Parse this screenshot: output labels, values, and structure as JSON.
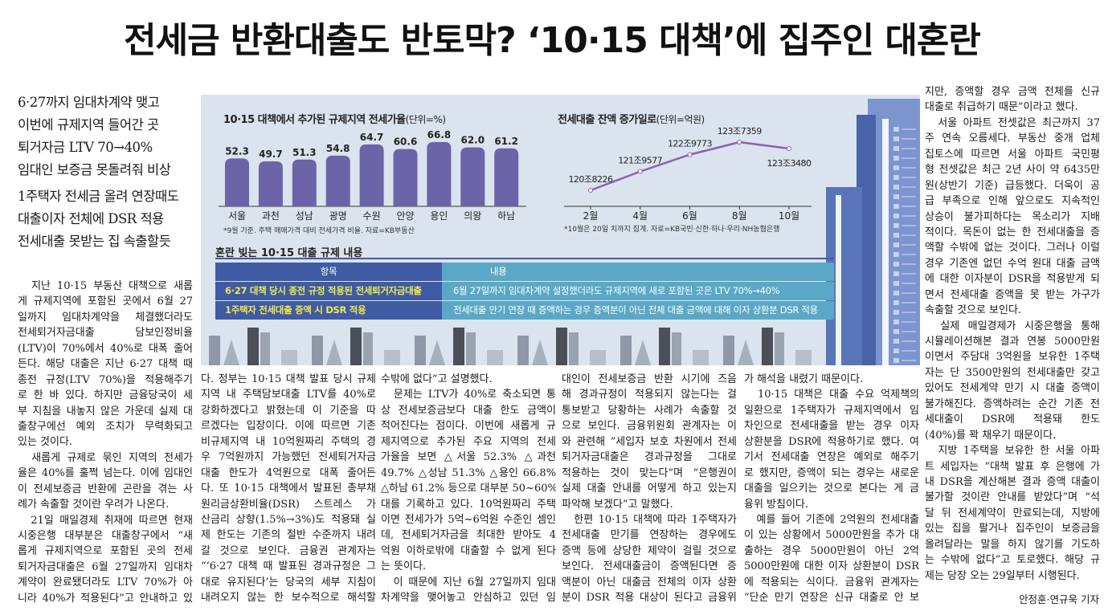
{
  "headline": "전세금 반환대출도 반토막? ‘10·15 대책’에 집주인 대혼란",
  "subheads": {
    "group1": [
      "6·27까지 임대차계약 맺고",
      "이번에 규제지역 들어간 곳",
      "퇴거자금 LTV 70→40%",
      "임대인 보증금 못돌려줘 비상"
    ],
    "group2": [
      "1주택자 전세금 올려 연장때도",
      "대출이자 전체에 DSR 적용",
      "전세대출 못받는 집 속출할듯"
    ]
  },
  "columns": [
    {
      "lines": [
        "　지난 10·15 부동산 대책으로 새롭",
        "게 규제지역에 포함된 곳에서 6월 27",
        "일까지 임대차계약을 체결했더라도",
        "전세퇴거자금대출 담보인정비율",
        "(LTV)이 70%에서 40%로 대폭 줄어",
        "든다. 해당 대출은 지난 6·27 대책 때",
        "종전 규정(LTV 70%)을 적용해주기",
        "로 한 바 있다. 하지만 금융당국이 세",
        "부 지침을 내놓지 않은 가운데 실제 대",
        "출창구에선 예외 조치가 무력화되고",
        "있는 것이다.",
        "　새롭게 규제로 묶인 지역의 전세가",
        "율은 40%를 훌쩍 넘는다. 이에 임대인",
        "이 전세보증금 반환에 곤란을 겪는 사",
        "례가 속출할 것이란 우려가 나온다.",
        "　21일 매일경제 취재에 따르면 현재",
        "시중은행 대부분은 대출창구에서 “새",
        "롭게 규제지역으로 포함된 곳의 전세",
        "퇴거자금대출은 6월 27일까지 임대차",
        "계약이 완료됐더라도 LTV 70%가 아",
        "니라 40%가 적용된다”고 안내하고 있"
      ],
      "ends": [
        10,
        14
      ]
    },
    {
      "lines": [
        "다. 정부는 10·15 대책 발표 당시 규제",
        "지역 내 주택담보대출 LTV를 40%로",
        "강화하겠다고 밝혔는데 이 기준을 따",
        "르겠다는 입장이다. 이에 따르면 기존",
        "비규제지역 내 10억원짜리 주택의 경",
        "우 7억원까지 가능했던 전세퇴거자금",
        "대출 한도가 4억원으로 대폭 줄어든",
        "다. 또 10·15 대책에서 발표된 총부채",
        "원리금상환비율(DSR) 스트레스 가",
        "산금리 상향(1.5%→3%)도 적용돼 실",
        "제 한도는 기존의 절반 수준까지 내려",
        "갈 것으로 보인다. 금융권 관계자는",
        "“‘6·27 대책 때 발표된 경과규정은 그",
        "대로 유지된다’는 당국의 세부 지침이",
        "내려오지 않는 한 보수적으로 해석할"
      ],
      "ends": []
    },
    {
      "lines": [
        "수밖에 없다”고 설명했다.",
        "　문제는 LTV가 40%로 축소되면 통",
        "상 전세보증금보다 대출 한도 금액이",
        "적어진다는 점이다. 이번에 새롭게 규",
        "제지역으로 추가된 주요 지역의 전세",
        "가율을 보면 △서울 52.3% △과천",
        "49.7% △성남 51.3% △용인 66.8%",
        "△하남 61.2% 등으로 대부분 50~60%",
        "대를 기록하고 있다. 10억원짜리 주택",
        "이면 전세가가 5억~6억원 수준인 셈인",
        "데, 전세퇴거자금을 최대한 받아도 4",
        "억원 이하로밖에 대출할 수 없게 된다",
        "는 뜻이다.",
        "　이 때문에 지난 6월 27일까지 임대",
        "차계약을 맺어놓고 안심하고 있던 임"
      ],
      "ends": [
        0,
        12
      ]
    },
    {
      "lines": [
        "대인이 전세보증금 반환 시기에 즈음",
        "해 경과규정이 적용되지 않는다는 걸",
        "통보받고 당황하는 사례가 속출할 것",
        "으로 보인다. 금융위원회 관계자는 이",
        "와 관련해 “세입자 보호 차원에서 전세",
        "퇴거자금대출은 경과규정을 그대로",
        "적용하는 것이 맞는다”며 “은행권이",
        "실제 대출 안내를 어떻게 하고 있는지",
        "파악해 보겠다”고 말했다.",
        "　한편 10·15 대책에 따라 1주택자가",
        "전세대출 만기를 연장하는 경우에도",
        "증액 등에 상당한 제약이 걸릴 것으로",
        "보인다. 전세대출금이 증액된다면 증",
        "액분이 아닌 대출금 전체의 이자 상환",
        "분이 DSR 적용 대상이 된다고 금융위"
      ],
      "ends": [
        8
      ]
    },
    {
      "lines": [
        "가 해석을 내렸기 때문이다.",
        "　10·15 대책은 대출 수요 억제책의",
        "일환으로 1주택자가 규제지역에서 임",
        "차인으로 전세대출을 받는 경우 이자",
        "상환분을 DSR에 적용하기로 했다. 여",
        "기서 전세대출 연장은 예외로 해주기",
        "로 했지만, 증액이 되는 경우는 새로운",
        "대출을 일으키는 것으로 본다는 게 금",
        "융위 방침이다.",
        "　예를 들어 기존에 2억원의 전세대출",
        "이 있는 상황에서 5000만원을 추가 대",
        "출하는 경우 5000만원이 아닌 2억",
        "5000만원에 대한 이자 상환분이 DSR",
        "에 적용되는 식이다. 금융위 관계자는",
        "“단순 만기 연장은 신규 대출로 안 보"
      ],
      "ends": [
        0,
        8
      ]
    },
    {
      "lines": [
        "지만, 증액할 경우 금액 전체를 신규",
        "대출로 취급하기 때문”이라고 했다.",
        "　서울 아파트 전셋값은 최근까지 37",
        "주 연속 오름세다. 부동산 중개 업체",
        "집토스에 따르면 서울 아파트 국민평",
        "형 전셋값은 최근 2년 사이 약 6435만",
        "원(상반기 기준) 급등했다. 더욱이 공",
        "급 부족으로 인해 앞으로도 지속적인",
        "상승이 불가피하다는 목소리가 지배",
        "적이다. 목돈이 없는 한 전세대출을 증",
        "액할 수밖에 없는 것이다. 그러나 이럴",
        "경우 기존엔 없던 수억 원대 대출 금액",
        "에 대한 이자분이 DSR을 적용받게 되",
        "면서 전세대출 증액을 못 받는 가구가",
        "속출할 것으로 보인다.",
        "　실제 매일경제가 시중은행을 통해",
        "시뮬레이션해본 결과 연봉 5000만원",
        "이면서 주담대 3억원을 보유한 1주택",
        "자는 단 3500만원의 전세대출만 갖고",
        "있어도 전세계약 만기 시 대출 증액이",
        "불가해진다. 증액하려는 순간 기존 전",
        "세대출이 DSR에 적용돼 한도",
        "(40%)를 꽉 채우기 때문이다.",
        "　지방 1주택을 보유한 한 서울 아파",
        "트 세입자는 “대책 발표 후 은행에 가",
        "내 DSR을 계산해본 결과 증액 대출이",
        "불가할 것이란 안내를 받았다”며 “석",
        "달 뒤 전세계약이 만료되는데, 지방에",
        "있는 집을 팔거나 집주인이 보증금을",
        "올려달라는 말을 하지 않기를 기도하",
        "는 수밖에 없다”고 토로했다. 해당 규",
        "제는 당장 오는 29일부터 시행된다."
      ],
      "ends": [
        1,
        14,
        22,
        31
      ]
    }
  ],
  "byline": "안정훈·연규욱 기자",
  "chart_data": [
    {
      "type": "bar",
      "title": "10·15 대책에서 추가된 규제지역 전세가율",
      "unit": "(단위=%)",
      "categories": [
        "서울",
        "과천",
        "성남",
        "광명",
        "수원",
        "안양",
        "용인",
        "의왕",
        "하남"
      ],
      "values": [
        52.3,
        49.7,
        51.3,
        54.8,
        64.7,
        60.6,
        66.8,
        62.0,
        61.2
      ],
      "labels": [
        "52.3",
        "49.7",
        "51.3",
        "54.8",
        "64.7",
        "60.6",
        "66.8",
        "62.0",
        "61.2"
      ],
      "ylim": [
        10,
        70
      ],
      "note": "*9월 기준. 주택 매매가격 대비 전세가격 비율. 자료=KB부동산",
      "color": "#6b64a8"
    },
    {
      "type": "line",
      "title": "전세대출 잔액 증가일로",
      "unit": "(단위=억원)",
      "categories": [
        "2월",
        "4월",
        "6월",
        "8월",
        "10월"
      ],
      "values": [
        1208226,
        1219577,
        1229773,
        1237359,
        1233480
      ],
      "labels": [
        "120조8226",
        "121조9577",
        "122조9773",
        "123조7359",
        "123조3480"
      ],
      "ylim": [
        1208226,
        1237359
      ],
      "note": "*10월은 20일 치까지 집계. 자료=KB국민·신한·하나·우리·NH농협은행",
      "color": "#8d5fae"
    }
  ],
  "table": {
    "title": "혼란 빚는 10·15 대출 규제 내용",
    "headers": [
      "항목",
      "내용"
    ],
    "rows": [
      [
        "6·27 대책 당시 종전 규정 적용된 전세퇴거자금대출",
        "6월 27일까지 임대차계약 설정했더라도 규제지역에 새로 포함된 곳은 LTV 70%→40%"
      ],
      [
        "1주택자 전세대출 증액 시 DSR 적용",
        "전세대출 만기 연장 때 증액하는 경우 증액분이 아닌 전체 대출 금액에 대해 이자 상환분 DSR 적용"
      ]
    ]
  }
}
